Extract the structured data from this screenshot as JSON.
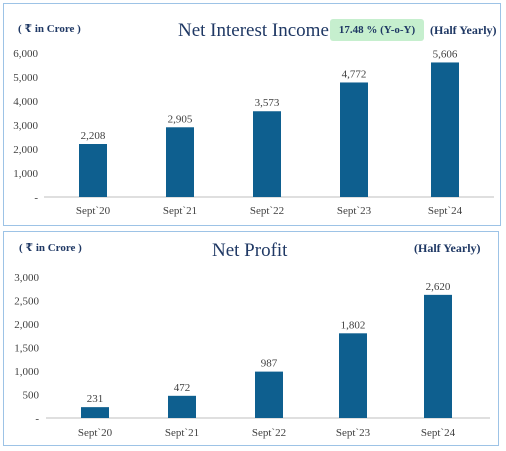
{
  "chart_data": [
    {
      "type": "bar",
      "title": "Net Interest Income",
      "unit_label": "( ₹ in Crore )",
      "growth_badge": "17.48 % (Y-o-Y)",
      "period": "(Half Yearly)",
      "categories": [
        "Sept`20",
        "Sept`21",
        "Sept`22",
        "Sept`23",
        "Sept`24"
      ],
      "values": [
        2208,
        2905,
        3573,
        4772,
        5606
      ],
      "data_labels": [
        "2,208",
        "2,905",
        "3,573",
        "4,772",
        "5,606"
      ],
      "y_ticks": [
        "-",
        "1,000",
        "2,000",
        "3,000",
        "4,000",
        "5,000",
        "6,000"
      ],
      "ylim": [
        0,
        6000
      ],
      "bar_color": "#0e5f8f",
      "grid": false
    },
    {
      "type": "bar",
      "title": "Net Profit",
      "unit_label": "( ₹ in Crore )",
      "period": "(Half Yearly)",
      "categories": [
        "Sept`20",
        "Sept`21",
        "Sept`22",
        "Sept`23",
        "Sept`24"
      ],
      "values": [
        231,
        472,
        987,
        1802,
        2620
      ],
      "data_labels": [
        "231",
        "472",
        "987",
        "1,802",
        "2,620"
      ],
      "y_ticks": [
        "-",
        "500",
        "1,000",
        "1,500",
        "2,000",
        "2,500",
        "3,000"
      ],
      "ylim": [
        0,
        3000
      ],
      "bar_color": "#0e5f8f",
      "grid": false
    }
  ]
}
